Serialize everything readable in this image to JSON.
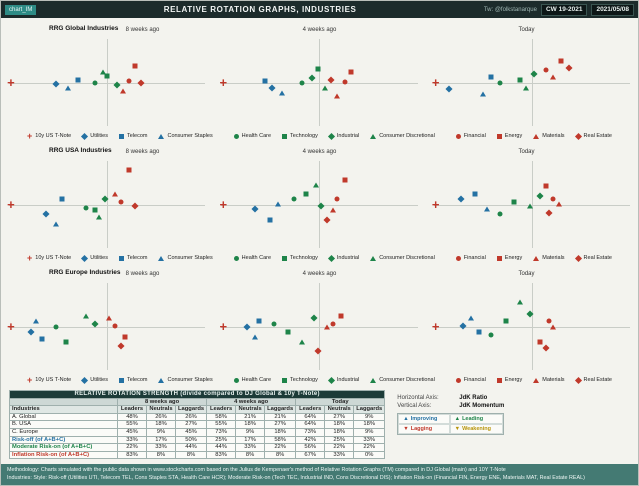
{
  "header": {
    "tag": "chart_IM",
    "title": "RELATIVE ROTATION GRAPHS, INDUSTRIES",
    "twitter": "Tw: @folkstanarque",
    "week": "CW 19-2021",
    "date": "2021/05/08"
  },
  "chart_data": {
    "type": "scatter",
    "title": "Relative Rotation Graphs, Industries",
    "panel_labels": [
      "8 weeks ago",
      "4 weeks ago",
      "Today"
    ],
    "axes": {
      "xlabel": "JdK Ratio",
      "ylabel": "JdK Momentum",
      "x_range": [
        0,
        100
      ],
      "y_range": [
        0,
        100
      ],
      "center": [
        50,
        50
      ],
      "grid": "crosshair"
    },
    "series_defs": [
      {
        "id": "TNOTE",
        "label": "10y US T-Note",
        "shape": "plus",
        "color": "#c0392b",
        "group": 0
      },
      {
        "id": "UTI",
        "label": "Utilities",
        "shape": "diamond",
        "color": "#2471a3",
        "group": 0
      },
      {
        "id": "TEL",
        "label": "Telecom",
        "shape": "square",
        "color": "#2471a3",
        "group": 0
      },
      {
        "id": "STA",
        "label": "Consumer Staples",
        "shape": "triangle",
        "color": "#2471a3",
        "group": 0
      },
      {
        "id": "HCR",
        "label": "Health Care",
        "shape": "circle",
        "color": "#1e8449",
        "group": 1
      },
      {
        "id": "TEC",
        "label": "Technology",
        "shape": "square",
        "color": "#1e8449",
        "group": 1
      },
      {
        "id": "IND",
        "label": "Industrial",
        "shape": "diamond",
        "color": "#1e8449",
        "group": 1
      },
      {
        "id": "DIS",
        "label": "Consumer Discretional",
        "shape": "triangle",
        "color": "#1e8449",
        "group": 1
      },
      {
        "id": "FIN",
        "label": "Financial",
        "shape": "circle",
        "color": "#c0392b",
        "group": 2
      },
      {
        "id": "ENE",
        "label": "Energy",
        "shape": "square",
        "color": "#c0392b",
        "group": 2
      },
      {
        "id": "MAT",
        "label": "Materials",
        "shape": "triangle",
        "color": "#c0392b",
        "group": 2
      },
      {
        "id": "REA",
        "label": "Real Estate",
        "shape": "diamond",
        "color": "#c0392b",
        "group": 2
      }
    ],
    "rows": [
      {
        "title": "RRG Global Industries",
        "panels": [
          {
            "label": "8 weeks ago",
            "points": [
              [
                "TNOTE",
                1,
                50
              ],
              [
                "UTI",
                24,
                48
              ],
              [
                "TEL",
                35,
                53
              ],
              [
                "STA",
                30,
                44
              ],
              [
                "HCR",
                44,
                50
              ],
              [
                "TEC",
                50,
                57
              ],
              [
                "IND",
                55,
                47
              ],
              [
                "DIS",
                48,
                61
              ],
              [
                "FIN",
                61,
                52
              ],
              [
                "ENE",
                64,
                67
              ],
              [
                "MAT",
                58,
                41
              ],
              [
                "REA",
                67,
                50
              ]
            ]
          },
          {
            "label": "4 weeks ago",
            "points": [
              [
                "TNOTE",
                1,
                50
              ],
              [
                "UTI",
                26,
                44
              ],
              [
                "TEL",
                22,
                52
              ],
              [
                "STA",
                31,
                39
              ],
              [
                "HCR",
                41,
                49
              ],
              [
                "TEC",
                49,
                64
              ],
              [
                "IND",
                46,
                55
              ],
              [
                "DIS",
                53,
                44
              ],
              [
                "FIN",
                63,
                51
              ],
              [
                "ENE",
                66,
                61
              ],
              [
                "MAT",
                59,
                36
              ],
              [
                "REA",
                56,
                53
              ]
            ]
          },
          {
            "label": "Today",
            "points": [
              [
                "TNOTE",
                1,
                50
              ],
              [
                "UTI",
                8,
                43
              ],
              [
                "TEL",
                29,
                56
              ],
              [
                "STA",
                25,
                38
              ],
              [
                "HCR",
                34,
                50
              ],
              [
                "TEC",
                44,
                53
              ],
              [
                "IND",
                51,
                59
              ],
              [
                "DIS",
                47,
                44
              ],
              [
                "FIN",
                57,
                63
              ],
              [
                "ENE",
                65,
                73
              ],
              [
                "MAT",
                61,
                56
              ],
              [
                "REA",
                69,
                65
              ]
            ]
          }
        ]
      },
      {
        "title": "RRG USA Industries",
        "panels": [
          {
            "label": "8 weeks ago",
            "points": [
              [
                "TNOTE",
                1,
                50
              ],
              [
                "UTI",
                19,
                40
              ],
              [
                "TEL",
                27,
                56
              ],
              [
                "STA",
                24,
                30
              ],
              [
                "HCR",
                39,
                46
              ],
              [
                "TEC",
                44,
                44
              ],
              [
                "IND",
                49,
                56
              ],
              [
                "DIS",
                46,
                37
              ],
              [
                "FIN",
                57,
                53
              ],
              [
                "ENE",
                61,
                86
              ],
              [
                "MAT",
                54,
                61
              ],
              [
                "REA",
                64,
                48
              ]
            ]
          },
          {
            "label": "4 weeks ago",
            "points": [
              [
                "TNOTE",
                1,
                50
              ],
              [
                "UTI",
                17,
                45
              ],
              [
                "TEL",
                25,
                34
              ],
              [
                "STA",
                29,
                51
              ],
              [
                "HCR",
                37,
                56
              ],
              [
                "TEC",
                43,
                61
              ],
              [
                "IND",
                51,
                48
              ],
              [
                "DIS",
                48,
                71
              ],
              [
                "FIN",
                59,
                56
              ],
              [
                "ENE",
                63,
                76
              ],
              [
                "MAT",
                57,
                44
              ],
              [
                "REA",
                54,
                34
              ]
            ]
          },
          {
            "label": "Today",
            "points": [
              [
                "TNOTE",
                1,
                50
              ],
              [
                "UTI",
                14,
                56
              ],
              [
                "TEL",
                21,
                61
              ],
              [
                "STA",
                27,
                45
              ],
              [
                "HCR",
                34,
                40
              ],
              [
                "TEC",
                41,
                53
              ],
              [
                "IND",
                54,
                59
              ],
              [
                "DIS",
                49,
                48
              ],
              [
                "FIN",
                61,
                56
              ],
              [
                "ENE",
                57,
                69
              ],
              [
                "MAT",
                64,
                51
              ],
              [
                "REA",
                59,
                41
              ]
            ]
          }
        ]
      },
      {
        "title": "RRG Europe Industries",
        "panels": [
          {
            "label": "8 weeks ago",
            "points": [
              [
                "TNOTE",
                1,
                50
              ],
              [
                "UTI",
                11,
                44
              ],
              [
                "TEL",
                17,
                37
              ],
              [
                "STA",
                14,
                56
              ],
              [
                "HCR",
                24,
                49
              ],
              [
                "TEC",
                29,
                34
              ],
              [
                "IND",
                44,
                53
              ],
              [
                "DIS",
                39,
                61
              ],
              [
                "FIN",
                54,
                51
              ],
              [
                "ENE",
                59,
                39
              ],
              [
                "MAT",
                51,
                59
              ],
              [
                "REA",
                57,
                29
              ]
            ]
          },
          {
            "label": "4 weeks ago",
            "points": [
              [
                "TNOTE",
                1,
                50
              ],
              [
                "UTI",
                13,
                49
              ],
              [
                "TEL",
                19,
                56
              ],
              [
                "STA",
                17,
                39
              ],
              [
                "HCR",
                27,
                53
              ],
              [
                "TEC",
                34,
                44
              ],
              [
                "IND",
                47,
                59
              ],
              [
                "DIS",
                41,
                34
              ],
              [
                "FIN",
                57,
                53
              ],
              [
                "ENE",
                61,
                61
              ],
              [
                "MAT",
                54,
                49
              ],
              [
                "REA",
                49,
                24
              ]
            ]
          },
          {
            "label": "Today",
            "points": [
              [
                "TNOTE",
                1,
                50
              ],
              [
                "UTI",
                15,
                51
              ],
              [
                "TEL",
                23,
                44
              ],
              [
                "STA",
                19,
                59
              ],
              [
                "HCR",
                29,
                41
              ],
              [
                "TEC",
                37,
                56
              ],
              [
                "IND",
                49,
                63
              ],
              [
                "DIS",
                44,
                76
              ],
              [
                "FIN",
                59,
                56
              ],
              [
                "ENE",
                54,
                34
              ],
              [
                "MAT",
                61,
                49
              ],
              [
                "REA",
                57,
                27
              ]
            ]
          }
        ]
      }
    ]
  },
  "axis_info": {
    "horizontal_label": "Horizontal Axis:",
    "horizontal_value": "JdK Ratio",
    "vertical_label": "Vertical Axis:",
    "vertical_value": "JdK Momentum",
    "arrows": {
      "up": "▲",
      "down": "▼"
    },
    "quadrants": {
      "improving": "Improving",
      "leading": "Leading",
      "lagging": "Lagging",
      "weakening": "Weakening"
    }
  },
  "table": {
    "title": "RELATIVE ROTATION STRENGTH (divide compared to DJ Global & 10y T-Note)",
    "periods": [
      "8 weeks ago",
      "4 weeks ago",
      "Today"
    ],
    "sub_headers": [
      "Leaders",
      "Neutrals",
      "Laggards"
    ],
    "row_label_header": "Industries",
    "rows": [
      {
        "label": "A. Global",
        "values": [
          "48%",
          "26%",
          "26%",
          "58%",
          "21%",
          "21%",
          "64%",
          "27%",
          "9%"
        ]
      },
      {
        "label": "B. USA",
        "values": [
          "55%",
          "18%",
          "27%",
          "55%",
          "18%",
          "27%",
          "64%",
          "18%",
          "18%"
        ]
      },
      {
        "label": "C. Europe",
        "values": [
          "45%",
          "9%",
          "45%",
          "73%",
          "9%",
          "18%",
          "73%",
          "18%",
          "9%"
        ]
      },
      {
        "label": "Risk-off (of A+B+C)",
        "values": [
          "33%",
          "17%",
          "50%",
          "25%",
          "17%",
          "58%",
          "42%",
          "25%",
          "33%"
        ],
        "color": "#2471a3"
      },
      {
        "label": "Moderate Risk-on (of A+B+C)",
        "values": [
          "22%",
          "33%",
          "44%",
          "44%",
          "33%",
          "22%",
          "56%",
          "22%",
          "22%"
        ],
        "color": "#1e8449"
      },
      {
        "label": "Inflation Risk-on (of A+B+C)",
        "values": [
          "83%",
          "8%",
          "8%",
          "83%",
          "8%",
          "8%",
          "67%",
          "33%",
          "0%"
        ],
        "color": "#c0392b"
      }
    ]
  },
  "footer": {
    "line1": "Methodology: Charts simulated with the public data shown in www.stockcharts.com based on the Julius de Kempenaer's method of Relative Rotation Graphs (TM) compared in DJ Global (main) and 10Y T-Note",
    "line2": "Industries:  Style: Risk-off (Utilities UTI, Telecom TEL, Cons Staples STA, Health Care HCR); Moderate Risk-on (Tech TEC, Industrial IND, Cons Discretional DIS); Inflation Risk-on (Financial FIN, Energy ENE, Materials MAT, Real Estate REAL)"
  }
}
